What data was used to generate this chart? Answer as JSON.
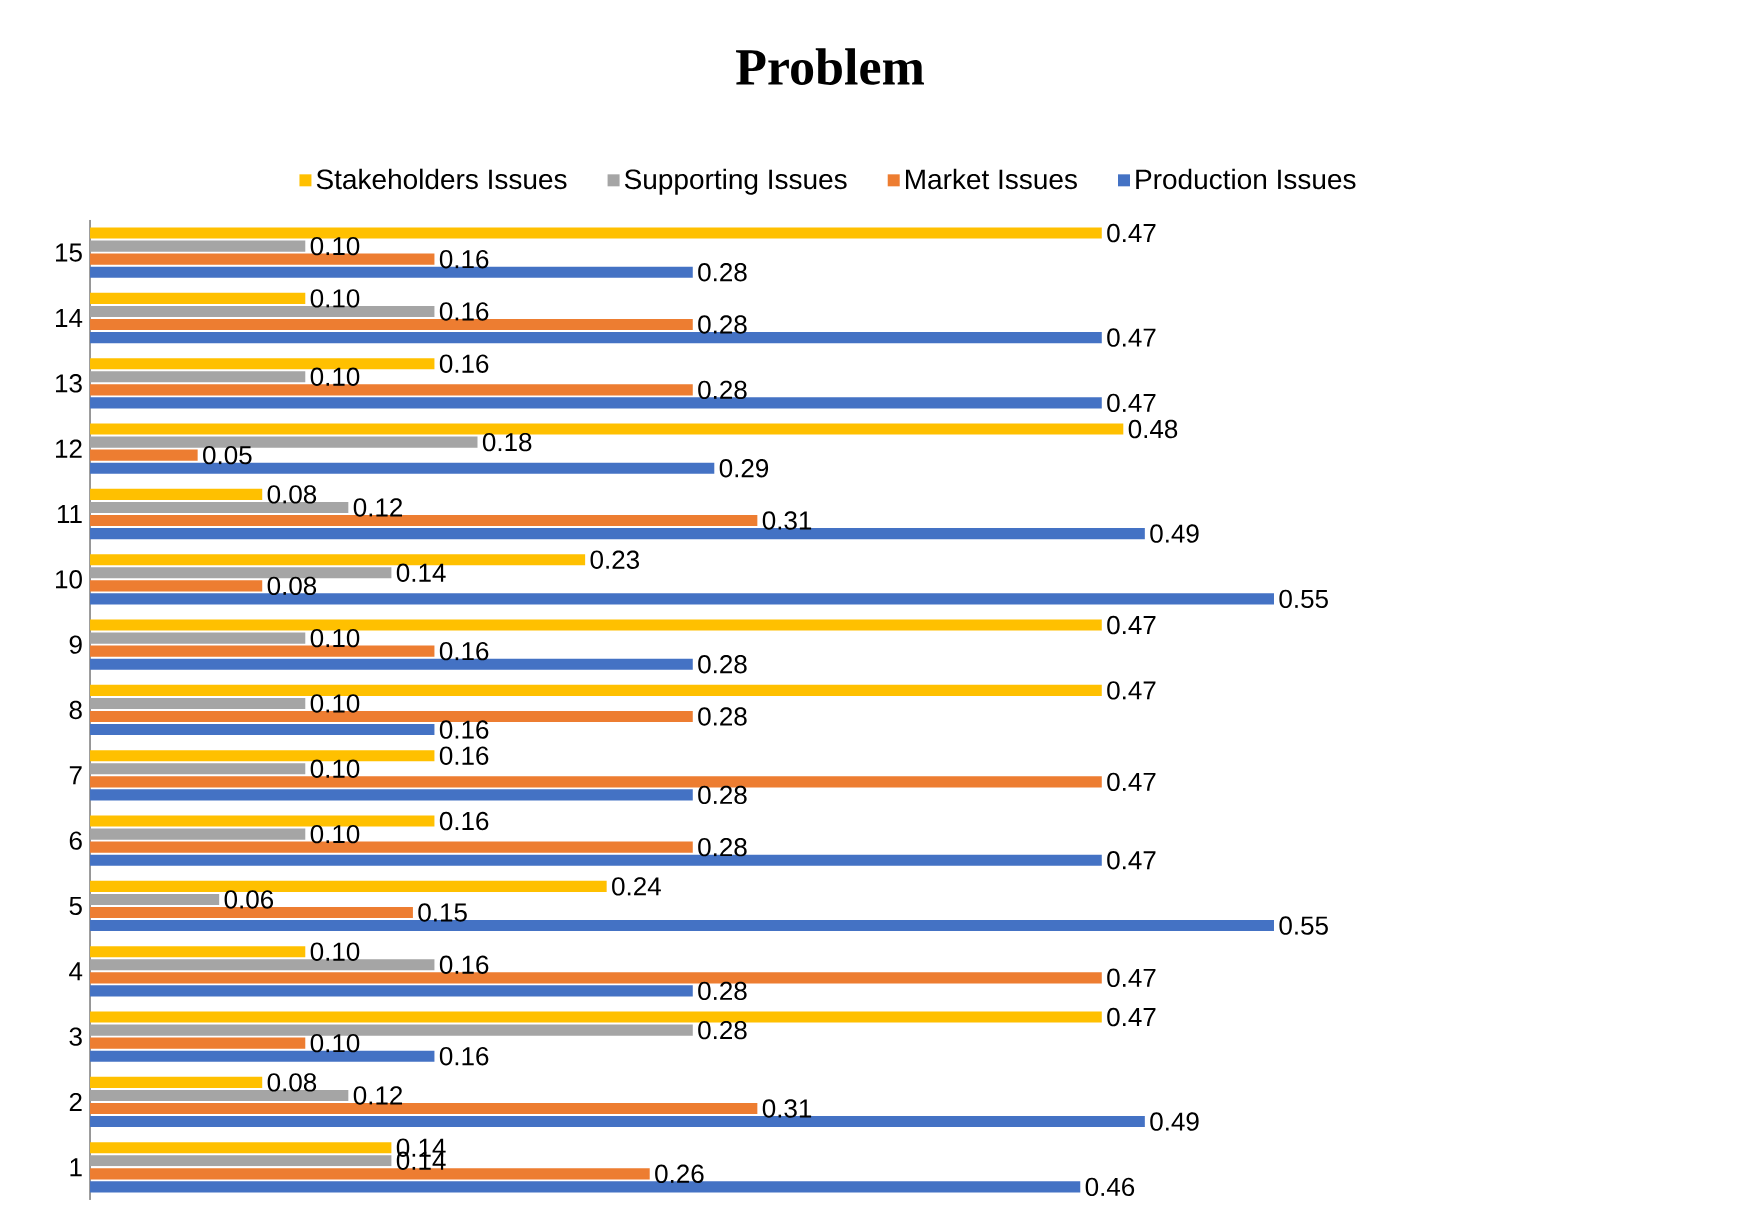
{
  "chart_data": {
    "type": "bar",
    "orientation": "horizontal",
    "title": "Problem",
    "legend": "top",
    "grid": false,
    "categories": [
      "15",
      "14",
      "13",
      "12",
      "11",
      "10",
      "9",
      "8",
      "7",
      "6",
      "5",
      "4",
      "3",
      "2",
      "1"
    ],
    "series": [
      {
        "name": "Stakeholders Issues",
        "color": "#ffc000",
        "values": [
          0.47,
          0.1,
          0.16,
          0.48,
          0.08,
          0.23,
          0.47,
          0.47,
          0.16,
          0.16,
          0.24,
          0.1,
          0.47,
          0.08,
          0.14
        ],
        "value_labels": [
          "0.47",
          "0.10",
          "0.16",
          "0.48",
          "0.08",
          "0.23",
          "0.47",
          "0.47",
          "0.16",
          "0.16",
          "0.24",
          "0.10",
          "0.47",
          "0.08",
          "0.14"
        ]
      },
      {
        "name": "Supporting Issues",
        "color": "#a5a5a5",
        "values": [
          0.1,
          0.16,
          0.1,
          0.18,
          0.12,
          0.14,
          0.1,
          0.1,
          0.1,
          0.1,
          0.06,
          0.16,
          0.28,
          0.12,
          0.14
        ],
        "value_labels": [
          "0.10",
          "0.16",
          "0.10",
          "0.18",
          "0.12",
          "0.14",
          "0.10",
          "0.10",
          "0.10",
          "0.10",
          "0.06",
          "0.16",
          "0.28",
          "0.12",
          "0.14"
        ]
      },
      {
        "name": "Market Issues",
        "color": "#ed7d31",
        "values": [
          0.16,
          0.28,
          0.28,
          0.05,
          0.31,
          0.08,
          0.16,
          0.28,
          0.47,
          0.28,
          0.15,
          0.47,
          0.1,
          0.31,
          0.26
        ],
        "value_labels": [
          "0.16",
          "0.28",
          "0.28",
          "0.05",
          "0.31",
          "0.08",
          "0.16",
          "0.28",
          "0.47",
          "0.28",
          "0.15",
          "0.47",
          "0.10",
          "0.31",
          "0.26"
        ]
      },
      {
        "name": "Production Issues",
        "color": "#4472c4",
        "values": [
          0.28,
          0.47,
          0.47,
          0.29,
          0.49,
          0.55,
          0.28,
          0.16,
          0.28,
          0.47,
          0.55,
          0.28,
          0.16,
          0.49,
          0.46
        ],
        "value_labels": [
          "0.28",
          "0.47",
          "0.47",
          "0.29",
          "0.49",
          "0.55",
          "0.28",
          "0.16",
          "0.28",
          "0.47",
          "0.55",
          "0.28",
          "0.16",
          "0.49",
          "0.46"
        ]
      }
    ]
  }
}
